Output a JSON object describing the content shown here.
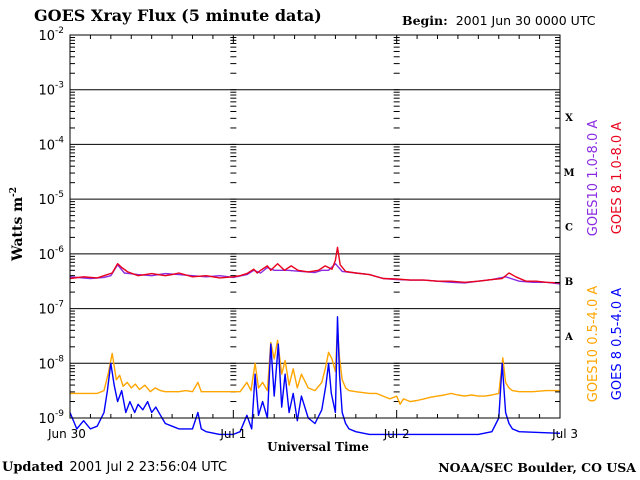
{
  "header": {
    "title": "GOES Xray Flux (5 minute data)",
    "begin_label": "Begin:",
    "begin_value": "2001 Jun 30 0000 UTC"
  },
  "footer": {
    "updated_label": "Updated",
    "updated_value": "2001 Jul  2 23:56:04 UTC",
    "credit": "NOAA/SEC Boulder, CO USA"
  },
  "chart_data": {
    "type": "line",
    "title": "GOES Xray Flux (5 minute data)",
    "xlabel": "Universal Time",
    "ylabel": "Watts m",
    "ylabel_superscript": "-2",
    "x_ticks": [
      "Jun 30",
      "Jul 1",
      "Jul 2",
      "Jul 3"
    ],
    "x_range_hours": [
      0,
      72
    ],
    "y_scale": "log",
    "y_exponent_range": [
      -9,
      -2
    ],
    "y_ticks": [
      {
        "base": "10",
        "exp": "-2"
      },
      {
        "base": "10",
        "exp": "-3"
      },
      {
        "base": "10",
        "exp": "-4"
      },
      {
        "base": "10",
        "exp": "-5"
      },
      {
        "base": "10",
        "exp": "-6"
      },
      {
        "base": "10",
        "exp": "-7"
      },
      {
        "base": "10",
        "exp": "-8"
      },
      {
        "base": "10",
        "exp": "-9"
      }
    ],
    "flare_classes": [
      {
        "label": "X",
        "exp": -3.5
      },
      {
        "label": "M",
        "exp": -4.5
      },
      {
        "label": "C",
        "exp": -5.5
      },
      {
        "label": "B",
        "exp": -6.5
      },
      {
        "label": "A",
        "exp": -7.5
      }
    ],
    "grid": true,
    "series": [
      {
        "name": "GOES10 1.0-8.0 A",
        "color": "#8a2be2",
        "points": [
          [
            0,
            -6.42
          ],
          [
            3,
            -6.45
          ],
          [
            5,
            -6.43
          ],
          [
            6,
            -6.4
          ],
          [
            7,
            -6.2
          ],
          [
            8,
            -6.35
          ],
          [
            10,
            -6.38
          ],
          [
            12,
            -6.4
          ],
          [
            14,
            -6.36
          ],
          [
            16,
            -6.38
          ],
          [
            18,
            -6.4
          ],
          [
            20,
            -6.42
          ],
          [
            22,
            -6.4
          ],
          [
            24,
            -6.43
          ],
          [
            26,
            -6.38
          ],
          [
            27,
            -6.3
          ],
          [
            28,
            -6.35
          ],
          [
            29,
            -6.25
          ],
          [
            30,
            -6.3
          ],
          [
            32,
            -6.3
          ],
          [
            34,
            -6.32
          ],
          [
            36,
            -6.34
          ],
          [
            37,
            -6.3
          ],
          [
            38,
            -6.3
          ],
          [
            39,
            -6.18
          ],
          [
            40,
            -6.32
          ],
          [
            42,
            -6.35
          ],
          [
            44,
            -6.38
          ],
          [
            46,
            -6.45
          ],
          [
            48,
            -6.47
          ],
          [
            50,
            -6.48
          ],
          [
            52,
            -6.48
          ],
          [
            54,
            -6.5
          ],
          [
            56,
            -6.52
          ],
          [
            58,
            -6.53
          ],
          [
            60,
            -6.5
          ],
          [
            62,
            -6.47
          ],
          [
            64,
            -6.42
          ],
          [
            66,
            -6.5
          ],
          [
            68,
            -6.52
          ],
          [
            70,
            -6.52
          ],
          [
            72,
            -6.55
          ]
        ]
      },
      {
        "name": "GOES 8 1.0-8.0 A",
        "color": "#e8001c",
        "points": [
          [
            0,
            -6.45
          ],
          [
            2,
            -6.42
          ],
          [
            4,
            -6.44
          ],
          [
            5,
            -6.4
          ],
          [
            6.2,
            -6.35
          ],
          [
            7,
            -6.18
          ],
          [
            7.6,
            -6.25
          ],
          [
            8.5,
            -6.33
          ],
          [
            10,
            -6.4
          ],
          [
            12,
            -6.36
          ],
          [
            14,
            -6.4
          ],
          [
            15,
            -6.38
          ],
          [
            16,
            -6.35
          ],
          [
            18,
            -6.42
          ],
          [
            20,
            -6.4
          ],
          [
            22,
            -6.44
          ],
          [
            24,
            -6.42
          ],
          [
            25,
            -6.4
          ],
          [
            26,
            -6.36
          ],
          [
            27,
            -6.28
          ],
          [
            27.5,
            -6.35
          ],
          [
            28,
            -6.3
          ],
          [
            29,
            -6.22
          ],
          [
            29.5,
            -6.3
          ],
          [
            30.5,
            -6.18
          ],
          [
            31.5,
            -6.3
          ],
          [
            32.5,
            -6.22
          ],
          [
            33.5,
            -6.3
          ],
          [
            35,
            -6.33
          ],
          [
            36.5,
            -6.3
          ],
          [
            37.5,
            -6.22
          ],
          [
            38.5,
            -6.28
          ],
          [
            39,
            -6.12
          ],
          [
            39.3,
            -5.88
          ],
          [
            39.7,
            -6.2
          ],
          [
            40.5,
            -6.32
          ],
          [
            42,
            -6.35
          ],
          [
            44,
            -6.38
          ],
          [
            46,
            -6.45
          ],
          [
            48,
            -6.46
          ],
          [
            50,
            -6.48
          ],
          [
            52,
            -6.48
          ],
          [
            54,
            -6.5
          ],
          [
            56,
            -6.5
          ],
          [
            58,
            -6.52
          ],
          [
            60,
            -6.5
          ],
          [
            62,
            -6.47
          ],
          [
            63.5,
            -6.45
          ],
          [
            64.5,
            -6.35
          ],
          [
            65.5,
            -6.42
          ],
          [
            67,
            -6.5
          ],
          [
            68.5,
            -6.5
          ],
          [
            70,
            -6.52
          ],
          [
            72,
            -6.53
          ]
        ]
      },
      {
        "name": "GOES10 0.5-4.0 A",
        "color": "#ffa500",
        "points": [
          [
            0,
            -8.55
          ],
          [
            2,
            -8.55
          ],
          [
            3,
            -8.55
          ],
          [
            4,
            -8.55
          ],
          [
            5,
            -8.5
          ],
          [
            5.6,
            -8.2
          ],
          [
            6.2,
            -7.82
          ],
          [
            6.8,
            -8.3
          ],
          [
            7.3,
            -8.22
          ],
          [
            7.8,
            -8.42
          ],
          [
            8.4,
            -8.35
          ],
          [
            9,
            -8.45
          ],
          [
            9.6,
            -8.38
          ],
          [
            10.2,
            -8.48
          ],
          [
            11,
            -8.4
          ],
          [
            11.8,
            -8.52
          ],
          [
            12.5,
            -8.45
          ],
          [
            13.3,
            -8.5
          ],
          [
            14,
            -8.52
          ],
          [
            15,
            -8.52
          ],
          [
            16,
            -8.52
          ],
          [
            17,
            -8.5
          ],
          [
            18,
            -8.52
          ],
          [
            18.8,
            -8.35
          ],
          [
            19.3,
            -8.52
          ],
          [
            20,
            -8.52
          ],
          [
            21,
            -8.52
          ],
          [
            22,
            -8.52
          ],
          [
            23,
            -8.52
          ],
          [
            24,
            -8.52
          ],
          [
            25,
            -8.52
          ],
          [
            26,
            -8.35
          ],
          [
            26.6,
            -8.5
          ],
          [
            27.2,
            -8.0
          ],
          [
            27.7,
            -8.45
          ],
          [
            28.3,
            -8.35
          ],
          [
            29,
            -8.5
          ],
          [
            29.5,
            -7.62
          ],
          [
            30,
            -7.92
          ],
          [
            30.5,
            -7.58
          ],
          [
            31.1,
            -8.2
          ],
          [
            31.6,
            -7.95
          ],
          [
            32.2,
            -8.4
          ],
          [
            32.8,
            -8.1
          ],
          [
            33.4,
            -8.45
          ],
          [
            34,
            -8.2
          ],
          [
            35,
            -8.45
          ],
          [
            36,
            -8.5
          ],
          [
            37,
            -8.35
          ],
          [
            37.5,
            -8.1
          ],
          [
            38,
            -7.8
          ],
          [
            38.5,
            -7.92
          ],
          [
            39,
            -8.15
          ],
          [
            39.3,
            -7.35
          ],
          [
            39.6,
            -7.9
          ],
          [
            40,
            -8.3
          ],
          [
            40.5,
            -8.45
          ],
          [
            41,
            -8.5
          ],
          [
            42,
            -8.52
          ],
          [
            44,
            -8.55
          ],
          [
            45,
            -8.55
          ],
          [
            46,
            -8.6
          ],
          [
            47,
            -8.65
          ],
          [
            48,
            -8.6
          ],
          [
            48.5,
            -8.75
          ],
          [
            49,
            -8.65
          ],
          [
            50,
            -8.7
          ],
          [
            51,
            -8.68
          ],
          [
            52,
            -8.65
          ],
          [
            53,
            -8.62
          ],
          [
            54,
            -8.6
          ],
          [
            55,
            -8.58
          ],
          [
            56,
            -8.55
          ],
          [
            57,
            -8.58
          ],
          [
            58,
            -8.6
          ],
          [
            59,
            -8.58
          ],
          [
            60,
            -8.6
          ],
          [
            61,
            -8.6
          ],
          [
            62,
            -8.58
          ],
          [
            63,
            -8.55
          ],
          [
            63.6,
            -7.9
          ],
          [
            64,
            -8.35
          ],
          [
            64.5,
            -8.45
          ],
          [
            65,
            -8.5
          ],
          [
            66,
            -8.52
          ],
          [
            68,
            -8.52
          ],
          [
            70,
            -8.5
          ],
          [
            72,
            -8.5
          ]
        ]
      },
      {
        "name": "GOES 8 0.5-4.0 A",
        "color": "#0000ff",
        "points": [
          [
            0,
            -8.9
          ],
          [
            1,
            -9.2
          ],
          [
            2,
            -9.05
          ],
          [
            3,
            -9.2
          ],
          [
            4,
            -9.15
          ],
          [
            5,
            -8.9
          ],
          [
            5.5,
            -8.5
          ],
          [
            6,
            -8.0
          ],
          [
            6.5,
            -8.4
          ],
          [
            7,
            -8.7
          ],
          [
            7.6,
            -8.5
          ],
          [
            8.2,
            -8.9
          ],
          [
            8.8,
            -8.7
          ],
          [
            9.5,
            -8.9
          ],
          [
            10,
            -8.75
          ],
          [
            10.7,
            -8.85
          ],
          [
            11.4,
            -8.7
          ],
          [
            12,
            -8.9
          ],
          [
            12.6,
            -8.8
          ],
          [
            13.3,
            -8.95
          ],
          [
            14,
            -9.1
          ],
          [
            15,
            -9.15
          ],
          [
            16,
            -9.2
          ],
          [
            17,
            -9.2
          ],
          [
            18,
            -9.2
          ],
          [
            18.8,
            -8.9
          ],
          [
            19.3,
            -9.2
          ],
          [
            20,
            -9.25
          ],
          [
            22,
            -9.3
          ],
          [
            24,
            -9.3
          ],
          [
            25,
            -9.25
          ],
          [
            26,
            -8.95
          ],
          [
            26.7,
            -9.2
          ],
          [
            27.2,
            -8.2
          ],
          [
            27.7,
            -8.95
          ],
          [
            28.3,
            -8.7
          ],
          [
            29,
            -9.0
          ],
          [
            29.5,
            -7.65
          ],
          [
            30,
            -8.6
          ],
          [
            30.6,
            -7.65
          ],
          [
            31.1,
            -8.8
          ],
          [
            31.6,
            -8.2
          ],
          [
            32.2,
            -8.9
          ],
          [
            32.8,
            -8.55
          ],
          [
            33.4,
            -9.05
          ],
          [
            34,
            -8.6
          ],
          [
            35,
            -9.0
          ],
          [
            36,
            -9.1
          ],
          [
            37,
            -8.85
          ],
          [
            37.6,
            -8.4
          ],
          [
            38,
            -8.0
          ],
          [
            38.4,
            -8.55
          ],
          [
            39,
            -8.9
          ],
          [
            39.3,
            -7.15
          ],
          [
            39.6,
            -8.2
          ],
          [
            40,
            -8.9
          ],
          [
            40.5,
            -9.1
          ],
          [
            41,
            -9.2
          ],
          [
            42,
            -9.25
          ],
          [
            44,
            -9.3
          ],
          [
            48,
            -9.3
          ],
          [
            50,
            -9.3
          ],
          [
            56,
            -9.3
          ],
          [
            60,
            -9.3
          ],
          [
            62,
            -9.25
          ],
          [
            63,
            -9.0
          ],
          [
            63.5,
            -8.0
          ],
          [
            64,
            -8.9
          ],
          [
            64.5,
            -9.1
          ],
          [
            65,
            -9.2
          ],
          [
            66,
            -9.25
          ],
          [
            72,
            -9.28
          ]
        ]
      }
    ]
  }
}
